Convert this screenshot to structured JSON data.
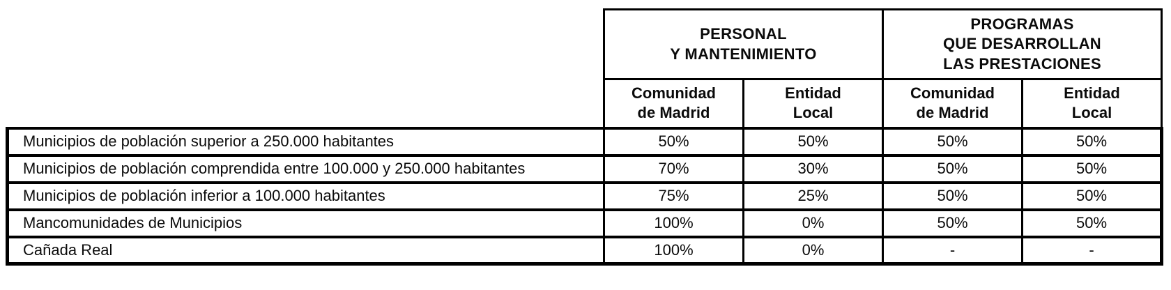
{
  "table": {
    "group_headers": [
      {
        "label": "PERSONAL\nY MANTENIMIENTO"
      },
      {
        "label": "PROGRAMAS\nQUE DESARROLLAN\nLAS PRESTACIONES"
      }
    ],
    "sub_headers": [
      {
        "label": "Comunidad\nde Madrid"
      },
      {
        "label": "Entidad\nLocal"
      },
      {
        "label": "Comunidad\nde Madrid"
      },
      {
        "label": "Entidad\nLocal"
      }
    ],
    "rows": [
      {
        "label": "Municipios de población superior a 250.000 habitantes",
        "values": [
          "50%",
          "50%",
          "50%",
          "50%"
        ]
      },
      {
        "label": "Municipios de población comprendida entre 100.000 y 250.000 habitantes",
        "values": [
          "70%",
          "30%",
          "50%",
          "50%"
        ]
      },
      {
        "label": "Municipios de población inferior a 100.000 habitantes",
        "values": [
          "75%",
          "25%",
          "50%",
          "50%"
        ]
      },
      {
        "label": "Mancomunidades de Municipios",
        "values": [
          "100%",
          "0%",
          "50%",
          "50%"
        ]
      },
      {
        "label": "Cañada Real",
        "values": [
          "100%",
          "0%",
          "-",
          "-"
        ]
      }
    ],
    "colors": {
      "border": "#000000",
      "text": "#0b0b0b",
      "background": "#ffffff"
    }
  }
}
